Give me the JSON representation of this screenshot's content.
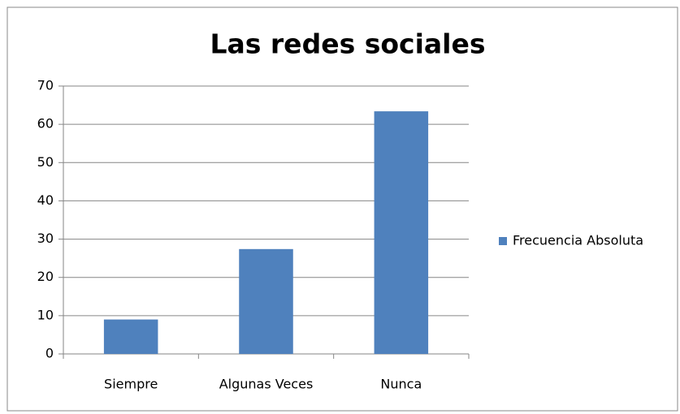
{
  "chart_data": {
    "type": "bar",
    "title": "Las redes sociales",
    "categories": [
      "Siempre",
      "Algunas Veces",
      "Nunca"
    ],
    "series": [
      {
        "name": "Frecuencia Absoluta",
        "color": "#4f81bd",
        "values": [
          9,
          27.4,
          63.4
        ]
      }
    ],
    "ylim": [
      0,
      70
    ],
    "yticks": [
      0,
      10,
      20,
      30,
      40,
      50,
      60,
      70
    ],
    "grid": true,
    "legend": "right"
  }
}
